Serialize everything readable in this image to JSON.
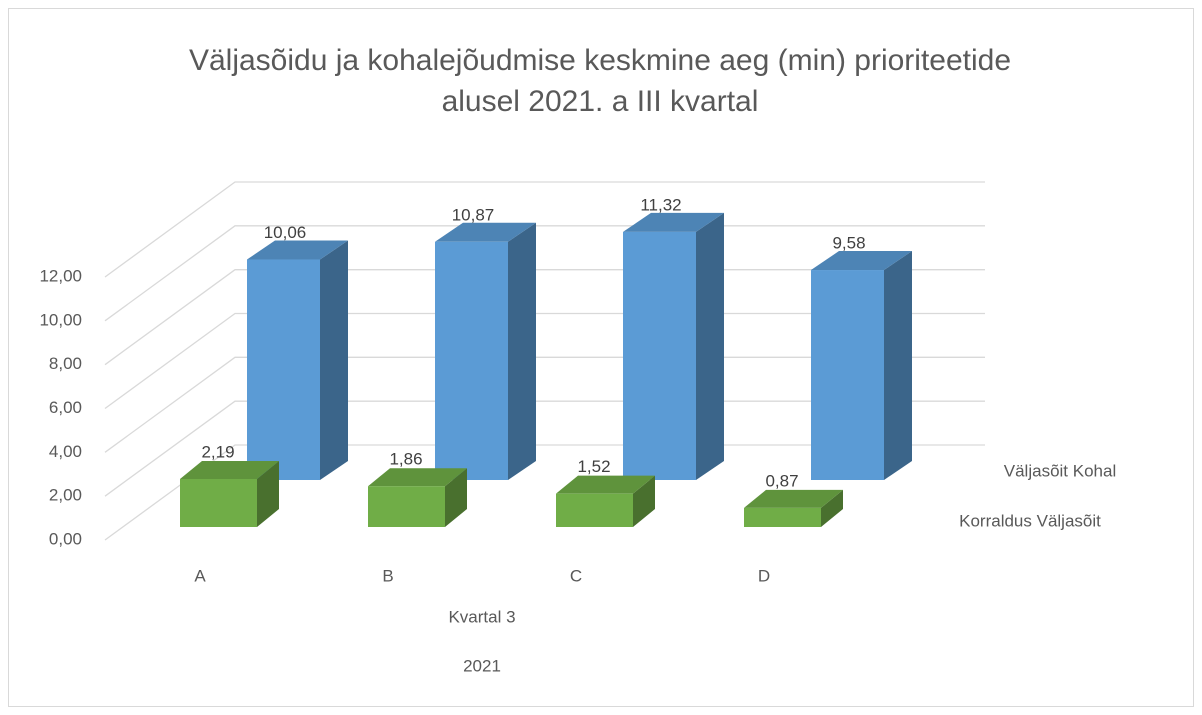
{
  "chart_data": {
    "type": "bar3d",
    "title": [
      "Väljasõidu ja kohalejõudmise keskmine aeg (min) prioriteetide",
      "alusel 2021. a III kvartal"
    ],
    "categories": [
      "A",
      "B",
      "C",
      "D"
    ],
    "category_groups": [
      "Kvartal 3",
      "2021"
    ],
    "series": [
      {
        "name": "Korraldus Väljasõit",
        "color": "#70ad47",
        "values": [
          2.19,
          1.86,
          1.52,
          0.87
        ],
        "value_labels": [
          "2,19",
          "1,86",
          "1,52",
          "0,87"
        ]
      },
      {
        "name": "Väljasõit Kohal",
        "color": "#5b9bd5",
        "values": [
          10.06,
          10.87,
          11.32,
          9.58
        ],
        "value_labels": [
          "10,06",
          "10,87",
          "11,32",
          "9,58"
        ]
      }
    ],
    "ylim": [
      0,
      12
    ],
    "yticks": [
      {
        "value": 0,
        "label": "0,00"
      },
      {
        "value": 2,
        "label": "2,00"
      },
      {
        "value": 4,
        "label": "4,00"
      },
      {
        "value": 6,
        "label": "6,00"
      },
      {
        "value": 8,
        "label": "8,00"
      },
      {
        "value": 10,
        "label": "10,00"
      },
      {
        "value": 12,
        "label": "12,00"
      }
    ],
    "grid": true
  }
}
